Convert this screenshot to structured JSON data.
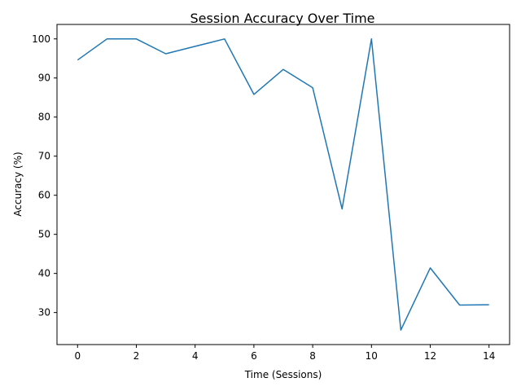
{
  "chart_data": {
    "type": "line",
    "title": "Session Accuracy Over Time",
    "xlabel": "Time (Sessions)",
    "ylabel": "Accuracy (%)",
    "xlim": [
      -0.7,
      14.7
    ],
    "ylim": [
      21.8,
      103.7
    ],
    "x_ticks": [
      "0",
      "2",
      "4",
      "6",
      "8",
      "10",
      "12",
      "14"
    ],
    "y_ticks": [
      "30",
      "40",
      "50",
      "60",
      "70",
      "80",
      "90",
      "100"
    ],
    "grid": false,
    "legend": "none",
    "series": [
      {
        "color": "#1f77b4",
        "x": [
          0,
          1,
          2,
          3,
          4,
          5,
          6,
          7,
          8,
          9,
          10,
          11,
          12,
          13,
          14
        ],
        "y": [
          94.6,
          100.0,
          100.0,
          96.2,
          98.1,
          100.0,
          85.8,
          92.2,
          87.5,
          56.5,
          100.0,
          25.5,
          41.4,
          31.9,
          32.0
        ]
      }
    ]
  }
}
